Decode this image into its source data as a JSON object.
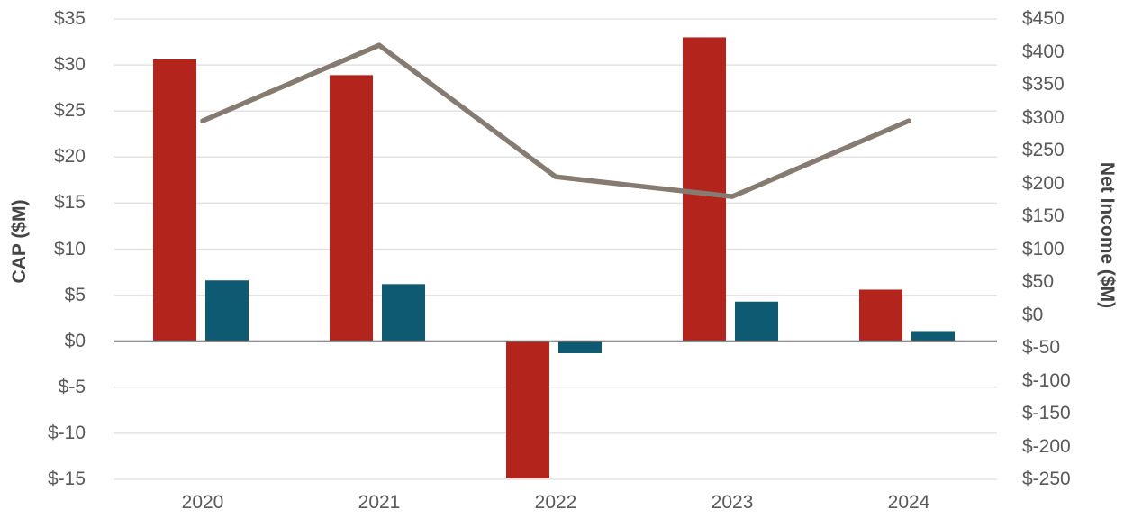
{
  "chart_data": {
    "type": "combo-bar-line",
    "categories": [
      "2020",
      "2021",
      "2022",
      "2023",
      "2024"
    ],
    "series": [
      {
        "name": "cap-red-bars",
        "type": "bar",
        "axis": "left",
        "color": "#B3241C",
        "values": [
          30.6,
          28.9,
          -14.9,
          33.0,
          5.6
        ]
      },
      {
        "name": "cap-teal-bars",
        "type": "bar",
        "axis": "left",
        "color": "#0E5A72",
        "values": [
          6.6,
          6.2,
          -1.3,
          4.3,
          1.1
        ]
      },
      {
        "name": "net-income-line",
        "type": "line",
        "axis": "right",
        "color": "#867B70",
        "values": [
          295,
          410,
          210,
          180,
          295
        ]
      }
    ],
    "left_axis": {
      "title": "CAP ($M)",
      "max": 35,
      "min": -15,
      "step": 5,
      "tick_labels": [
        "$35",
        "$30",
        "$25",
        "$20",
        "$15",
        "$10",
        "$5",
        "$0",
        "$-5",
        "$-10",
        "$-15"
      ]
    },
    "right_axis": {
      "title": "Net Income ($M)",
      "max": 450,
      "min": -250,
      "step": 50,
      "tick_labels": [
        "$450",
        "$400",
        "$350",
        "$300",
        "$250",
        "$200",
        "$150",
        "$100",
        "$50",
        "$0",
        "$-50",
        "$-100",
        "$-150",
        "$-200",
        "$-250"
      ]
    },
    "grid": "horizontal-at-left-axis-ticks",
    "legend": "none",
    "colors": {
      "gridline": "#E3E3E3",
      "zero_axis_line": "#6B6B6B",
      "tick_text": "#595959",
      "axis_title_text": "#454545"
    }
  }
}
